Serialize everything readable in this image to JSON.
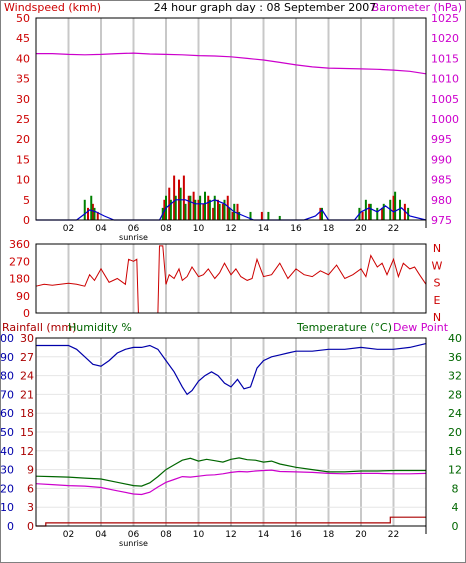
{
  "colors": {
    "wind": "#cc0000",
    "gust": "#008000",
    "windavg": "#0000cc",
    "baro": "#cc00cc",
    "dir": "#cc0000",
    "humidity": "#0000aa",
    "temp": "#006600",
    "dew": "#cc00cc",
    "rain": "#aa0000",
    "grid": "#c8c8c8",
    "frame": "#000000"
  },
  "chart_data": [
    {
      "type": "line",
      "title": "24 hour graph day : 08 September 2007",
      "ylabel_left": "Windspeed (kmh)",
      "ylabel_right": "Barometer (hPa)",
      "yticks_left": [
        "0",
        "5",
        "10",
        "15",
        "20",
        "25",
        "30",
        "35",
        "40",
        "45",
        "50"
      ],
      "yticks_right": [
        "975",
        "980",
        "985",
        "990",
        "995",
        "1000",
        "1005",
        "1010",
        "1015",
        "1020",
        "1025"
      ],
      "ylim_left": [
        0,
        50
      ],
      "ylim_right": [
        975,
        1025
      ],
      "xticks": [
        "02",
        "04",
        "06",
        "08",
        "10",
        "12",
        "14",
        "16",
        "18",
        "20",
        "22"
      ],
      "xlim": [
        0,
        24
      ],
      "sunrise_label": "sunrise",
      "grid": true,
      "series": [
        {
          "key": "baro",
          "axis": "right",
          "x": [
            0,
            1,
            2,
            3,
            4,
            5,
            6,
            7,
            8,
            9,
            10,
            11,
            12,
            13,
            14,
            15,
            16,
            17,
            18,
            19,
            20,
            21,
            22,
            23,
            24
          ],
          "values": [
            1016.2,
            1016.2,
            1016.0,
            1015.9,
            1016.0,
            1016.2,
            1016.3,
            1016.1,
            1016.0,
            1015.9,
            1015.7,
            1015.6,
            1015.4,
            1015.0,
            1014.6,
            1014.0,
            1013.4,
            1012.9,
            1012.6,
            1012.5,
            1012.4,
            1012.3,
            1012.1,
            1011.8,
            1011.2
          ]
        },
        {
          "key": "wind",
          "axis": "left",
          "x": [
            3.2,
            3.5,
            3.8,
            7.9,
            8.2,
            8.5,
            8.8,
            9.1,
            9.4,
            9.7,
            10.0,
            10.3,
            10.6,
            10.9,
            11.2,
            11.5,
            11.8,
            12.1,
            12.4,
            13.9,
            17.5,
            20.1,
            20.5,
            21.3,
            22.0,
            22.7
          ],
          "values": [
            3,
            4,
            2,
            5,
            8,
            11,
            10,
            11,
            6,
            7,
            5,
            4,
            6,
            3,
            5,
            4,
            6,
            2,
            4,
            2,
            3,
            2,
            4,
            3,
            6,
            4
          ]
        },
        {
          "key": "gust",
          "axis": "left",
          "x": [
            3.0,
            3.4,
            3.6,
            7.8,
            8.0,
            8.3,
            8.6,
            8.9,
            9.2,
            9.5,
            9.8,
            10.1,
            10.4,
            10.7,
            11.0,
            11.3,
            11.6,
            11.9,
            12.2,
            12.5,
            13.2,
            14.3,
            15.0,
            17.6,
            19.9,
            20.3,
            20.6,
            21.0,
            21.4,
            21.8,
            22.1,
            22.4,
            22.9
          ],
          "values": [
            5,
            6,
            3,
            3,
            6,
            5,
            6,
            8,
            4,
            6,
            5,
            6,
            7,
            5,
            6,
            4,
            5,
            3,
            4,
            2,
            2,
            2,
            1,
            3,
            3,
            5,
            4,
            3,
            4,
            5,
            7,
            5,
            3
          ]
        },
        {
          "key": "windavg",
          "axis": "left",
          "x": [
            0.0,
            2.5,
            3.0,
            3.3,
            3.7,
            4.2,
            4.8,
            7.6,
            8.0,
            8.6,
            9.2,
            9.8,
            10.4,
            11.0,
            11.6,
            12.2,
            12.8,
            13.4,
            16.5,
            17.2,
            17.6,
            18.0,
            19.6,
            20.0,
            20.5,
            21.0,
            21.5,
            22.0,
            22.5,
            23.0,
            24.0
          ],
          "values": [
            0,
            0,
            1.5,
            2.5,
            2,
            1,
            0,
            0,
            3,
            5,
            5,
            4,
            4,
            5,
            4,
            2,
            1,
            0,
            0,
            1,
            2.5,
            0,
            0,
            2,
            3,
            2,
            3.5,
            2,
            3,
            1,
            0
          ]
        }
      ]
    },
    {
      "type": "line",
      "yticks": [
        "0",
        "90",
        "180",
        "270",
        "360"
      ],
      "ylim": [
        0,
        360
      ],
      "compass_labels": [
        "N",
        "W",
        "S",
        "E",
        "N"
      ],
      "xlim": [
        0,
        24
      ],
      "grid": true,
      "series": [
        {
          "key": "dir",
          "x": [
            0,
            0.5,
            1.0,
            1.5,
            2.0,
            2.5,
            3.0,
            3.3,
            3.6,
            4.0,
            4.5,
            5.0,
            5.5,
            5.7,
            6.0,
            6.2,
            6.3,
            7.5,
            7.6,
            7.8,
            8.0,
            8.2,
            8.5,
            8.8,
            9.0,
            9.3,
            9.6,
            10.0,
            10.3,
            10.6,
            11.0,
            11.3,
            11.6,
            12.0,
            12.3,
            12.6,
            13.0,
            13.3,
            13.6,
            14.0,
            14.5,
            15.0,
            15.5,
            16.0,
            16.5,
            17.0,
            17.5,
            18.0,
            18.5,
            19.0,
            19.5,
            20.0,
            20.3,
            20.6,
            21.0,
            21.3,
            21.6,
            22.0,
            22.3,
            22.6,
            23.0,
            23.3,
            23.6,
            24.0
          ],
          "values": [
            140,
            150,
            145,
            150,
            155,
            150,
            140,
            200,
            170,
            230,
            160,
            180,
            150,
            280,
            270,
            280,
            0,
            0,
            350,
            350,
            150,
            200,
            180,
            230,
            170,
            190,
            240,
            190,
            200,
            230,
            180,
            210,
            260,
            200,
            230,
            190,
            170,
            180,
            280,
            190,
            200,
            260,
            180,
            230,
            200,
            190,
            220,
            200,
            250,
            180,
            200,
            230,
            190,
            300,
            240,
            260,
            200,
            280,
            190,
            260,
            230,
            240,
            200,
            150
          ]
        }
      ]
    },
    {
      "type": "line",
      "ylabel_left": "Rainfall (mm)",
      "ylabel_left2": "Humidity %",
      "ylabel_right": "Temperature (°C)",
      "ylabel_right2": "Dew Point",
      "yticks_rain": [
        "0",
        "3",
        "6",
        "9",
        "12",
        "15",
        "18",
        "21",
        "24",
        "27",
        "30"
      ],
      "yticks_hum": [
        "0",
        "10",
        "20",
        "30",
        "40",
        "50",
        "60",
        "70",
        "80",
        "90",
        "100"
      ],
      "yticks_temp": [
        "0",
        "4",
        "8",
        "12",
        "16",
        "20",
        "24",
        "28",
        "32",
        "36",
        "40"
      ],
      "xticks": [
        "02",
        "04",
        "06",
        "08",
        "10",
        "12",
        "14",
        "16",
        "18",
        "20",
        "22"
      ],
      "xlim": [
        0,
        24
      ],
      "sunrise_label": "sunrise",
      "grid": true,
      "series": [
        {
          "key": "humidity",
          "axis": "hum",
          "x": [
            0,
            1.0,
            2.0,
            2.5,
            3.0,
            3.5,
            4.0,
            4.5,
            5.0,
            5.5,
            6.0,
            6.5,
            7.0,
            7.5,
            8.0,
            8.5,
            9.0,
            9.3,
            9.6,
            10.0,
            10.4,
            10.8,
            11.2,
            11.6,
            12.0,
            12.4,
            12.8,
            13.2,
            13.6,
            14.0,
            14.5,
            15.0,
            15.5,
            16.0,
            17.0,
            18.0,
            19.0,
            20.0,
            21.0,
            22.0,
            23.0,
            24.0
          ],
          "values": [
            96,
            96,
            96,
            94,
            90,
            86,
            85,
            88,
            92,
            94,
            95,
            95,
            96,
            94,
            88,
            82,
            74,
            70,
            72,
            77,
            80,
            82,
            80,
            76,
            74,
            78,
            73,
            74,
            84,
            88,
            90,
            91,
            92,
            93,
            93,
            94,
            94,
            95,
            94,
            94,
            95,
            97
          ]
        },
        {
          "key": "temp",
          "axis": "temp",
          "x": [
            0,
            1.0,
            2.0,
            3.0,
            4.0,
            5.0,
            6.0,
            6.5,
            7.0,
            7.5,
            8.0,
            8.5,
            9.0,
            9.5,
            10.0,
            10.5,
            11.0,
            11.5,
            12.0,
            12.5,
            13.0,
            13.5,
            14.0,
            14.5,
            15.0,
            16.0,
            17.0,
            18.0,
            19.0,
            20.0,
            21.0,
            22.0,
            23.0,
            24.0
          ],
          "values": [
            10.6,
            10.5,
            10.4,
            10.2,
            10.0,
            9.3,
            8.6,
            8.5,
            9.2,
            10.5,
            12.0,
            13.0,
            14.0,
            14.4,
            13.8,
            14.2,
            13.9,
            13.6,
            14.2,
            14.5,
            14.1,
            14.0,
            13.6,
            13.8,
            13.2,
            12.5,
            12.0,
            11.5,
            11.5,
            11.7,
            11.7,
            11.8,
            11.8,
            11.8
          ]
        },
        {
          "key": "dew",
          "axis": "temp",
          "x": [
            0,
            1.0,
            2.0,
            3.0,
            4.0,
            5.0,
            6.0,
            6.5,
            7.0,
            7.5,
            8.0,
            8.5,
            9.0,
            9.5,
            10.0,
            10.5,
            11.0,
            11.5,
            12.0,
            12.5,
            13.0,
            13.5,
            14.0,
            14.5,
            15.0,
            16.0,
            17.0,
            18.0,
            19.0,
            20.0,
            21.0,
            22.0,
            23.0,
            24.0
          ],
          "values": [
            9.0,
            8.8,
            8.6,
            8.5,
            8.2,
            7.5,
            6.8,
            6.7,
            7.2,
            8.3,
            9.3,
            9.9,
            10.5,
            10.4,
            10.6,
            10.8,
            10.9,
            11.1,
            11.4,
            11.6,
            11.5,
            11.7,
            11.8,
            11.9,
            11.6,
            11.5,
            11.4,
            11.2,
            11.1,
            11.2,
            11.2,
            11.1,
            11.1,
            11.2
          ]
        },
        {
          "key": "rain",
          "axis": "rain",
          "x": [
            0,
            0.6,
            0.6,
            21.8,
            21.8,
            24.0
          ],
          "values": [
            0,
            0,
            0.5,
            0.5,
            1.4,
            1.4
          ]
        }
      ]
    }
  ]
}
